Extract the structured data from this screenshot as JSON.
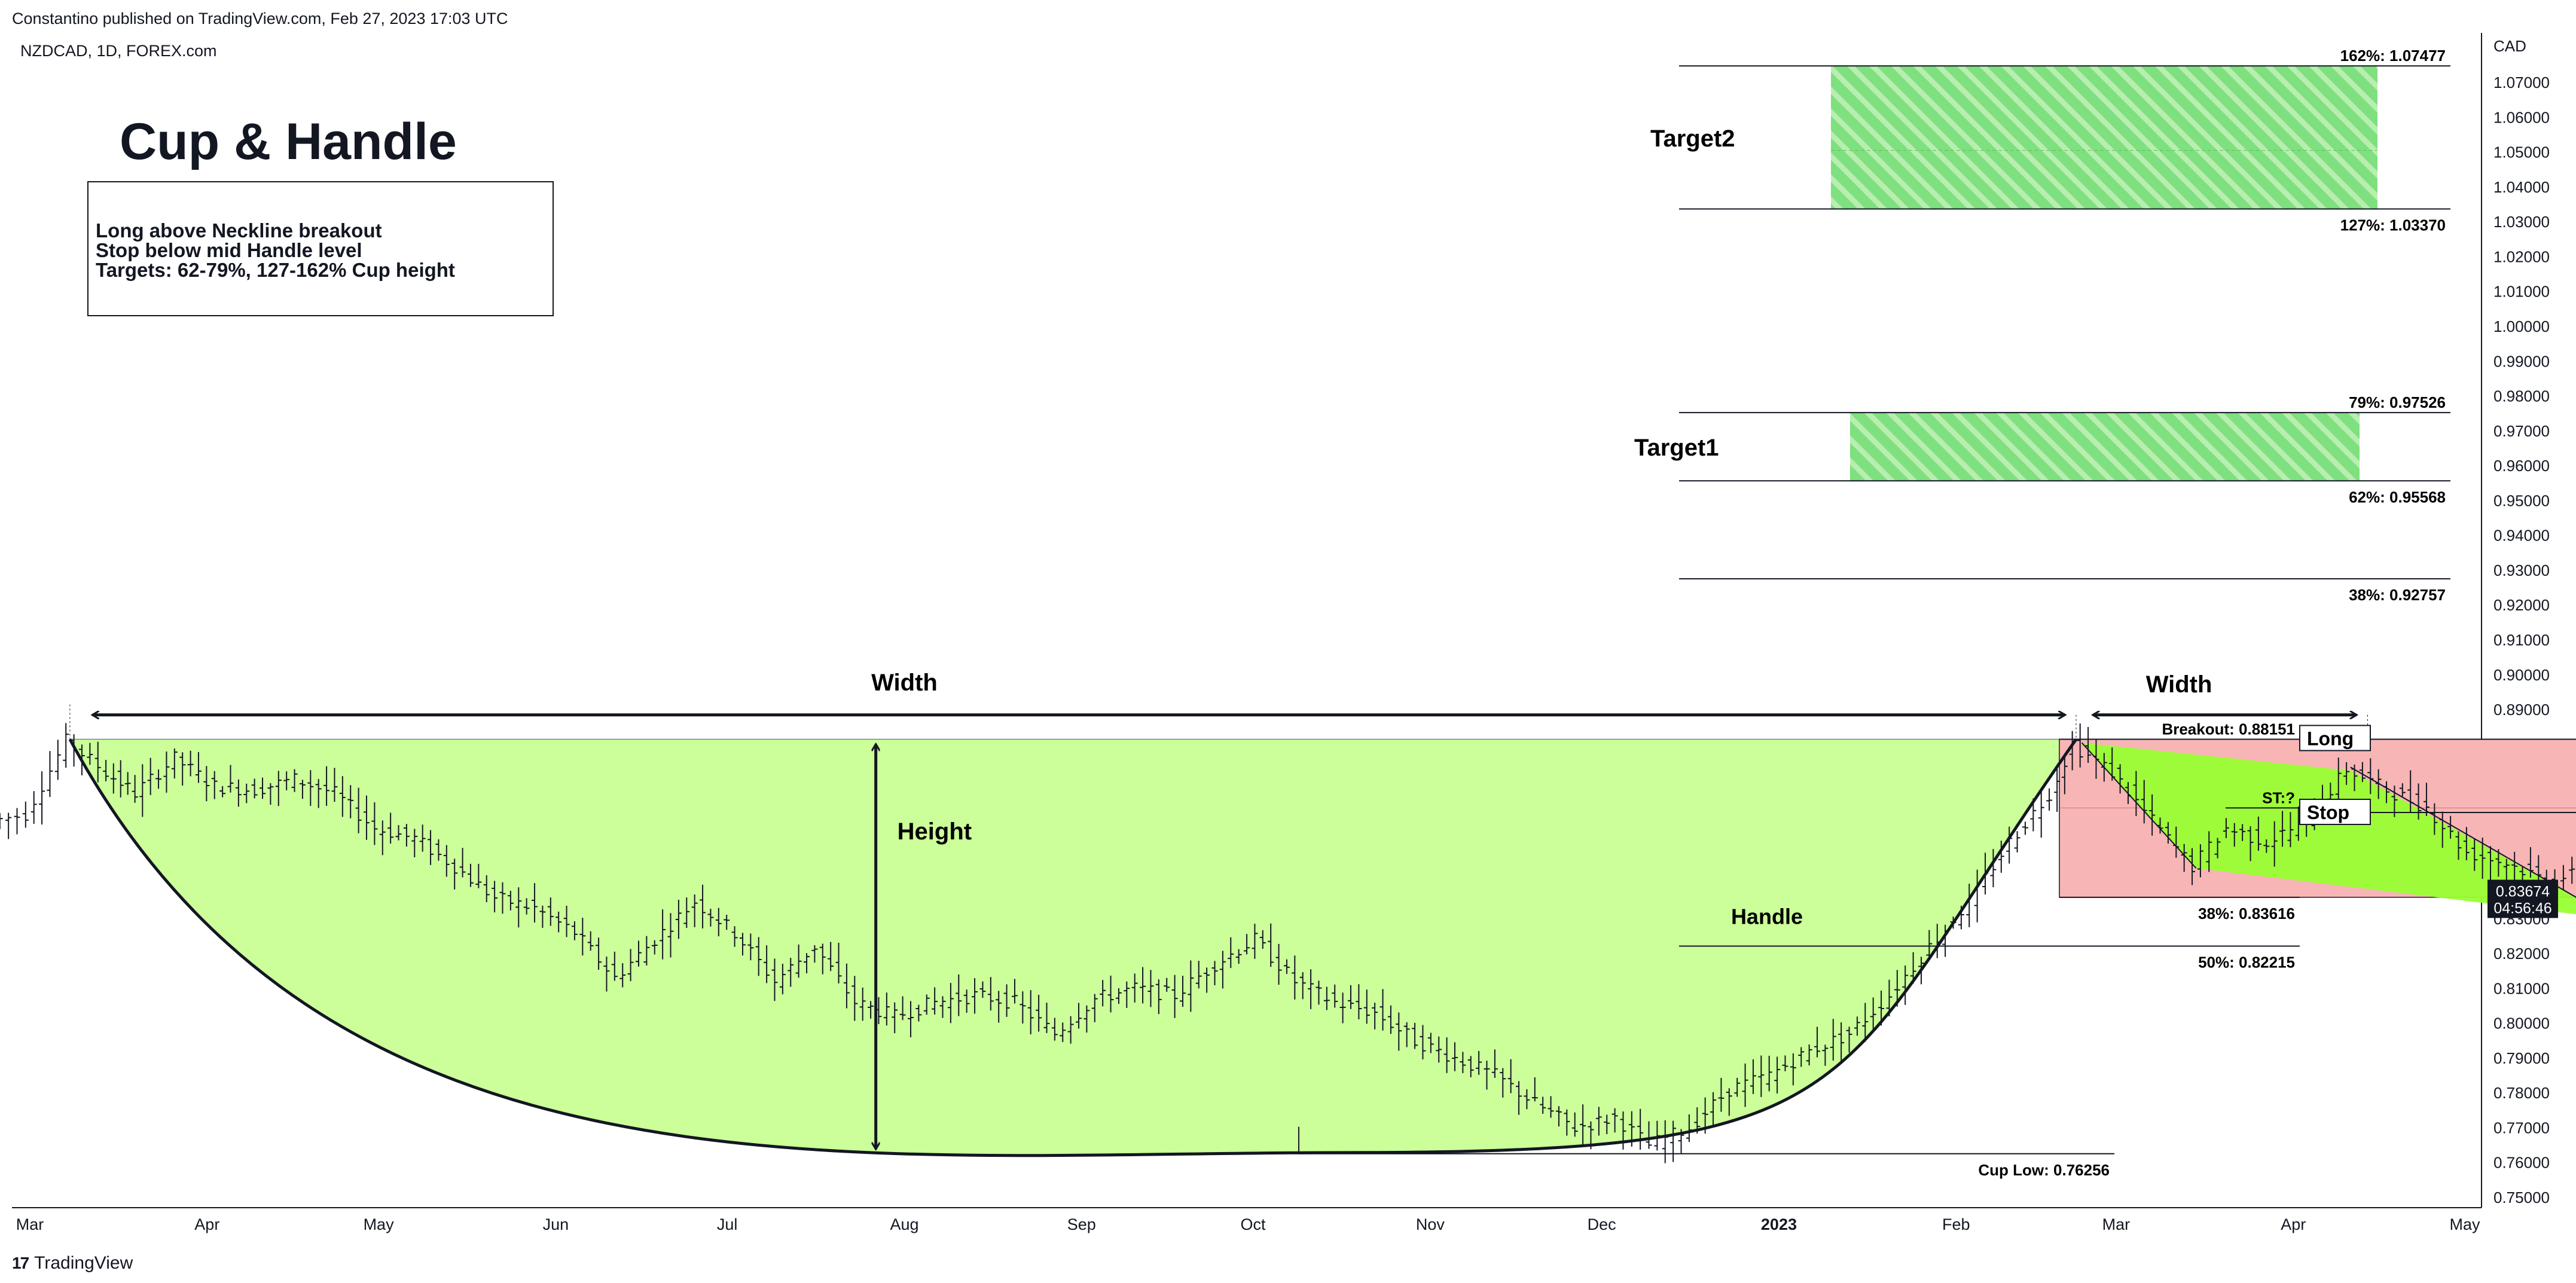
{
  "header": {
    "published": "Constantino published on TradingView.com, Feb 27, 2023 17:03 UTC",
    "symbol": "NZDCAD, 1D, FOREX.com"
  },
  "title": "Cup & Handle",
  "notes": [
    "Long above Neckline breakout",
    "Stop below mid Handle level",
    "Targets: 62-79%, 127-162% Cup height"
  ],
  "footer": {
    "brand": "TradingView",
    "logo": "tv-logo-icon"
  },
  "colors": {
    "cup_fill": "#ccff99",
    "handle_fill": "#99ff33",
    "handle_box": "#f8b5b5",
    "target_fill": "#7ee07e",
    "target_hatch": "#b8eeb0",
    "candle": "#131722"
  },
  "chart_data": {
    "type": "ohlc",
    "yaxis": {
      "unit": "CAD",
      "range": [
        0.745,
        1.085
      ],
      "ticks": [
        "1.07000",
        "1.06000",
        "1.05000",
        "1.04000",
        "1.03000",
        "1.02000",
        "1.01000",
        "1.00000",
        "0.99000",
        "0.98000",
        "0.97000",
        "0.96000",
        "0.95000",
        "0.94000",
        "0.93000",
        "0.92000",
        "0.91000",
        "0.90000",
        "0.89000",
        "0.88000",
        "0.87000",
        "0.86000",
        "0.85000",
        "0.84000",
        "0.83000",
        "0.82000",
        "0.81000",
        "0.80000",
        "0.79000",
        "0.78000",
        "0.77000",
        "0.76000",
        "0.75000"
      ]
    },
    "xaxis": {
      "labels": [
        {
          "text": "Mar",
          "date": "2022-03-01"
        },
        {
          "text": "Apr",
          "date": "2022-04-01"
        },
        {
          "text": "May",
          "date": "2022-05-01"
        },
        {
          "text": "Jun",
          "date": "2022-06-01"
        },
        {
          "text": "Jul",
          "date": "2022-07-01"
        },
        {
          "text": "Aug",
          "date": "2022-08-01"
        },
        {
          "text": "Sep",
          "date": "2022-09-01"
        },
        {
          "text": "Oct",
          "date": "2022-10-01"
        },
        {
          "text": "Nov",
          "date": "2022-11-01"
        },
        {
          "text": "Dec",
          "date": "2022-12-01"
        },
        {
          "text": "2023",
          "date": "2023-01-01",
          "bold": true
        },
        {
          "text": "Feb",
          "date": "2023-02-01"
        },
        {
          "text": "Mar",
          "date": "2023-03-01"
        },
        {
          "text": "Apr",
          "date": "2023-04-01"
        },
        {
          "text": "May",
          "date": "2023-05-01"
        }
      ]
    },
    "price_path": [
      [
        "2022-02-23",
        0.858
      ],
      [
        "2022-03-01",
        0.86
      ],
      [
        "2022-03-08",
        0.881
      ],
      [
        "2022-03-15",
        0.872
      ],
      [
        "2022-03-20",
        0.866
      ],
      [
        "2022-03-27",
        0.876
      ],
      [
        "2022-04-03",
        0.868
      ],
      [
        "2022-04-10",
        0.867
      ],
      [
        "2022-04-17",
        0.87
      ],
      [
        "2022-04-24",
        0.866
      ],
      [
        "2022-05-01",
        0.856
      ],
      [
        "2022-05-08",
        0.853
      ],
      [
        "2022-05-15",
        0.845
      ],
      [
        "2022-05-22",
        0.836
      ],
      [
        "2022-05-29",
        0.833
      ],
      [
        "2022-06-05",
        0.826
      ],
      [
        "2022-06-12",
        0.813
      ],
      [
        "2022-06-19",
        0.824
      ],
      [
        "2022-06-26",
        0.835
      ],
      [
        "2022-07-03",
        0.826
      ],
      [
        "2022-07-10",
        0.812
      ],
      [
        "2022-07-17",
        0.822
      ],
      [
        "2022-07-24",
        0.806
      ],
      [
        "2022-07-31",
        0.802
      ],
      [
        "2022-08-07",
        0.806
      ],
      [
        "2022-08-14",
        0.808
      ],
      [
        "2022-08-21",
        0.806
      ],
      [
        "2022-08-28",
        0.797
      ],
      [
        "2022-09-04",
        0.807
      ],
      [
        "2022-09-11",
        0.81
      ],
      [
        "2022-09-18",
        0.808
      ],
      [
        "2022-09-25",
        0.817
      ],
      [
        "2022-10-02",
        0.824
      ],
      [
        "2022-10-09",
        0.812
      ],
      [
        "2022-10-16",
        0.806
      ],
      [
        "2022-10-23",
        0.803
      ],
      [
        "2022-10-30",
        0.795
      ],
      [
        "2022-11-06",
        0.79
      ],
      [
        "2022-11-13",
        0.785
      ],
      [
        "2022-11-20",
        0.777
      ],
      [
        "2022-11-27",
        0.77
      ],
      [
        "2022-12-04",
        0.773
      ],
      [
        "2022-12-10",
        0.765
      ],
      [
        "2022-12-17",
        0.77
      ],
      [
        "2022-12-24",
        0.781
      ],
      [
        "2022-12-31",
        0.785
      ],
      [
        "2023-01-07",
        0.792
      ],
      [
        "2023-01-14",
        0.797
      ],
      [
        "2023-01-21",
        0.808
      ],
      [
        "2023-01-28",
        0.822
      ],
      [
        "2023-02-04",
        0.835
      ],
      [
        "2023-02-11",
        0.852
      ],
      [
        "2023-02-18",
        0.866
      ],
      [
        "2023-02-22",
        0.88
      ],
      [
        "2023-03-01",
        0.872
      ],
      [
        "2023-03-08",
        0.858
      ],
      [
        "2023-03-15",
        0.845
      ],
      [
        "2023-03-21",
        0.856
      ],
      [
        "2023-03-28",
        0.852
      ],
      [
        "2023-04-04",
        0.858
      ],
      [
        "2023-04-11",
        0.873
      ],
      [
        "2023-04-18",
        0.867
      ],
      [
        "2023-04-25",
        0.862
      ],
      [
        "2023-05-02",
        0.849
      ],
      [
        "2023-05-09",
        0.846
      ],
      [
        "2023-05-16",
        0.841
      ],
      [
        "2023-05-22",
        0.843
      ],
      [
        "2023-05-27",
        0.837
      ]
    ],
    "levels": [
      {
        "label": "162%: 1.07477",
        "value": 1.07477
      },
      {
        "label": "127%: 1.03370",
        "value": 1.0337
      },
      {
        "label": "79%: 0.97526",
        "value": 0.97526
      },
      {
        "label": "62%: 0.95568",
        "value": 0.95568
      },
      {
        "label": "38%: 0.92757",
        "value": 0.92757
      },
      {
        "label": "Breakout: 0.88151",
        "value": 0.88151
      },
      {
        "label": "ST:?",
        "value": 0.8618
      },
      {
        "label": "38%: 0.83616",
        "value": 0.83616
      },
      {
        "label": "50%: 0.82215",
        "value": 0.82215
      },
      {
        "label": "Cup Low: 0.76256",
        "value": 0.76256
      }
    ],
    "targets": [
      {
        "label": "Target2",
        "top": 1.07477,
        "bottom": 1.0337
      },
      {
        "label": "Target1",
        "top": 0.97526,
        "bottom": 0.95568
      }
    ],
    "annotations": {
      "width_cup": "Width",
      "width_handle": "Width",
      "height": "Height",
      "handle": "Handle",
      "long": "Long",
      "stop": "Stop"
    },
    "current_price": {
      "price": "0.83674",
      "countdown": "04:56:46"
    }
  }
}
